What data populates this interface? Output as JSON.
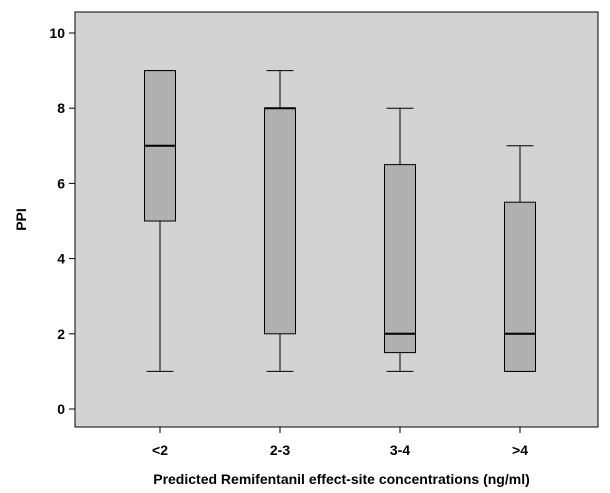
{
  "chart_data": {
    "type": "box",
    "title": "",
    "xlabel": "Predicted Remifentanil effect-site concentrations (ng/ml)",
    "ylabel": "PPI",
    "ylim": [
      0,
      10
    ],
    "yticks": [
      0,
      2,
      4,
      6,
      8,
      10
    ],
    "categories": [
      "<2",
      "2-3",
      "3-4",
      ">4"
    ],
    "boxes": [
      {
        "category": "<2",
        "min": 1,
        "q1": 5,
        "median": 7,
        "q3": 9,
        "max": 9
      },
      {
        "category": "2-3",
        "min": 1,
        "q1": 2,
        "median": 8,
        "q3": 8,
        "max": 9
      },
      {
        "category": "3-4",
        "min": 1,
        "q1": 1.5,
        "median": 2,
        "q3": 6.5,
        "max": 8
      },
      {
        "category": ">4",
        "min": 1,
        "q1": 1,
        "median": 2,
        "q3": 5.5,
        "max": 7
      }
    ],
    "grid": false,
    "legend": "none"
  },
  "colors": {
    "plot_background": "#d3d3d3",
    "box_fill": "#b0b0b0",
    "line": "#000000"
  }
}
